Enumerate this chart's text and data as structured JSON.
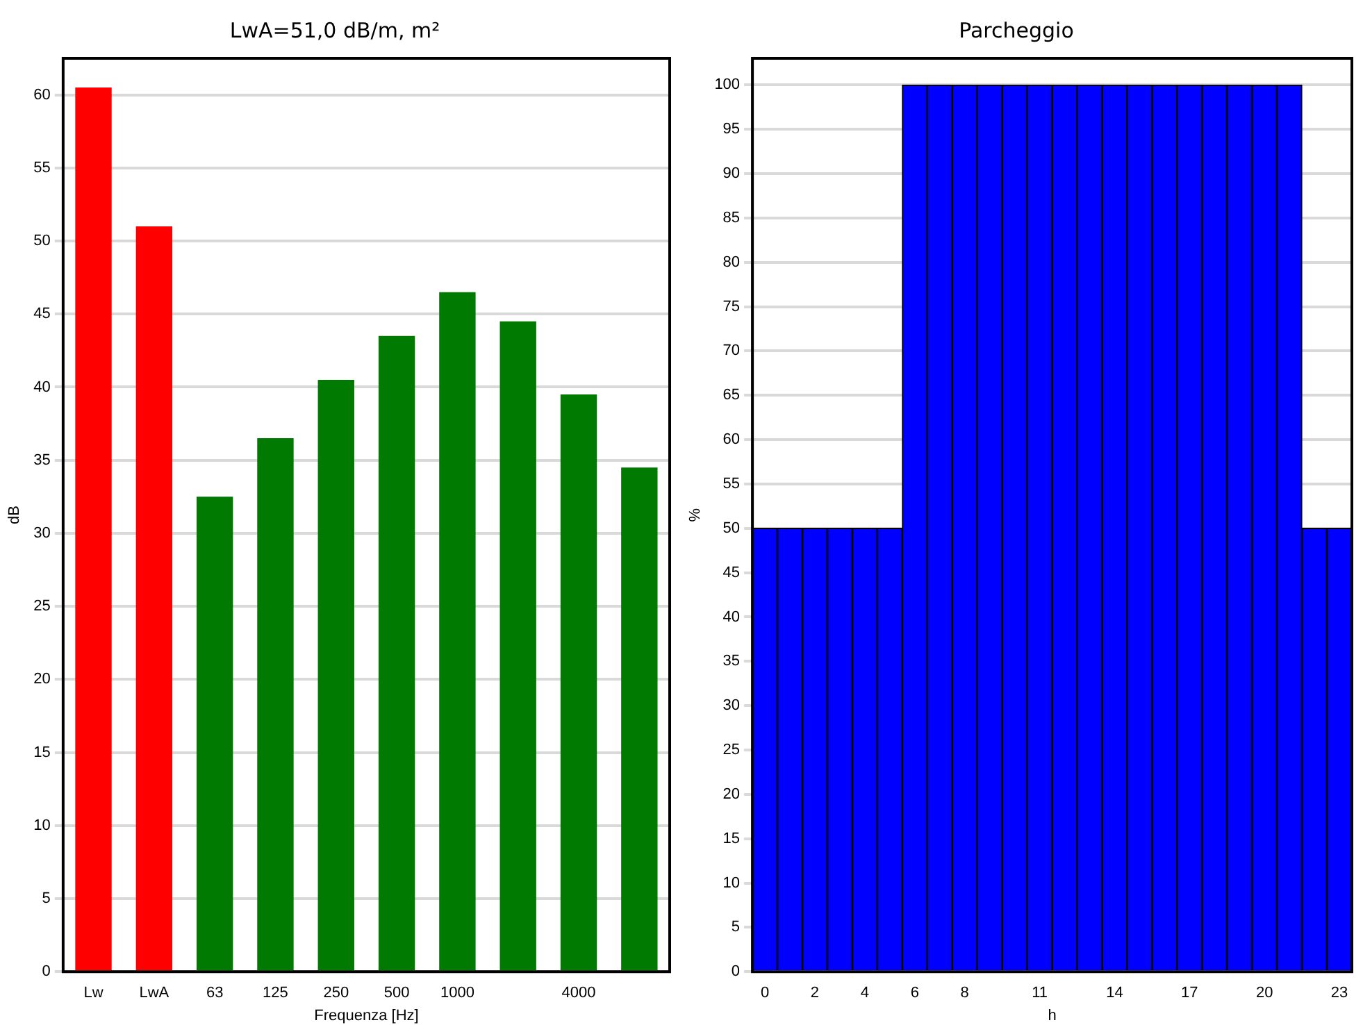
{
  "chart_data": [
    {
      "type": "bar",
      "title": "LwA=51,0 dB/m, m²",
      "xlabel": "Frequenza [Hz]",
      "ylabel": "dB",
      "categories": [
        "Lw",
        "LwA",
        "63",
        "125",
        "250",
        "500",
        "1000",
        null,
        "4000",
        null
      ],
      "values": [
        60.5,
        51,
        32.5,
        36.5,
        40.5,
        43.5,
        46.5,
        44.5,
        39.5,
        34.5
      ],
      "colors": [
        "#ff0000",
        "#ff0000",
        "#007a00",
        "#007a00",
        "#007a00",
        "#007a00",
        "#007a00",
        "#007a00",
        "#007a00",
        "#007a00"
      ],
      "ylim": [
        0,
        62.5
      ],
      "yticks": [
        0,
        5,
        10,
        15,
        20,
        25,
        30,
        35,
        40,
        45,
        50,
        55,
        60
      ],
      "grid": "y"
    },
    {
      "type": "bar",
      "title": "Parcheggio",
      "xlabel": "h",
      "ylabel": "%",
      "categories": [
        "0",
        null,
        "2",
        null,
        "4",
        null,
        "6",
        null,
        "8",
        null,
        null,
        "11",
        null,
        null,
        "14",
        null,
        null,
        "17",
        null,
        null,
        "20",
        null,
        null,
        "23"
      ],
      "values": [
        50,
        50,
        50,
        50,
        50,
        50,
        100,
        100,
        100,
        100,
        100,
        100,
        100,
        100,
        100,
        100,
        100,
        100,
        100,
        100,
        100,
        100,
        50,
        50
      ],
      "color": "#0000ff",
      "ylim": [
        0,
        103
      ],
      "yticks": [
        0,
        5,
        10,
        15,
        20,
        25,
        30,
        35,
        40,
        45,
        50,
        55,
        60,
        65,
        70,
        75,
        80,
        85,
        90,
        95,
        100
      ],
      "grid": "y"
    }
  ]
}
